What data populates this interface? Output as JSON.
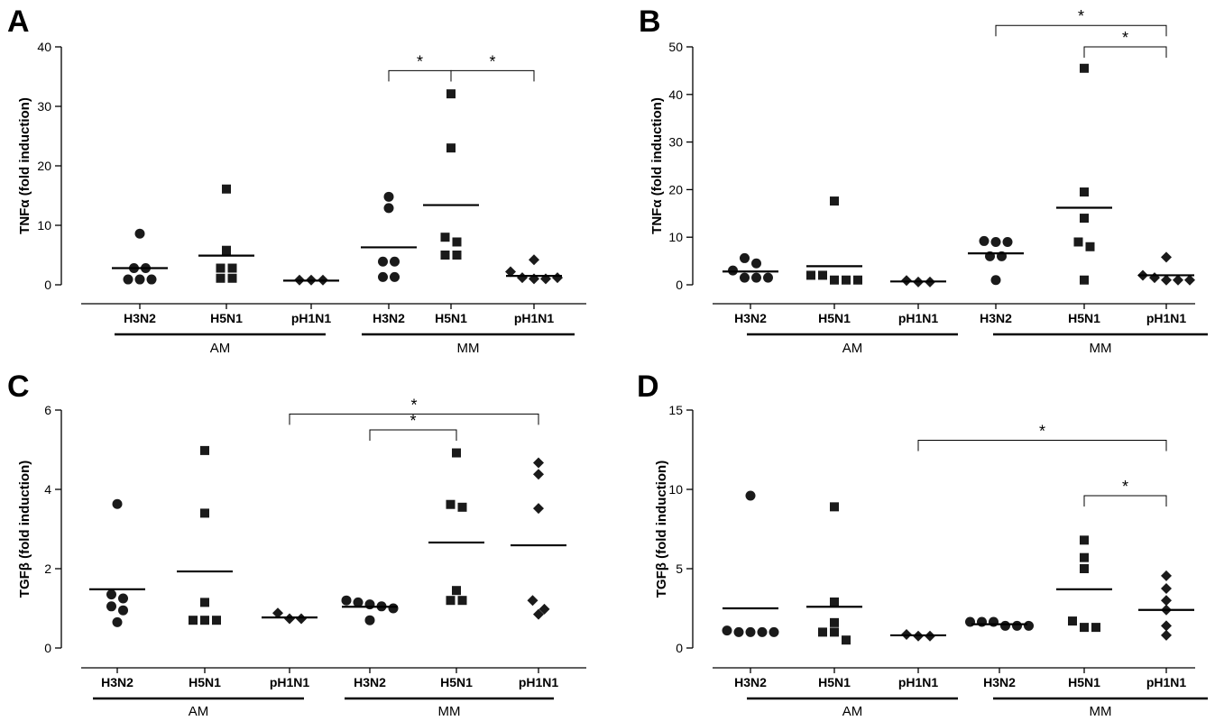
{
  "chart_data": [
    {
      "type": "scatter",
      "panel": "A",
      "ylabel": "TNFα (fold induction)",
      "ylim": [
        0,
        40
      ],
      "yticks": [
        0,
        10,
        20,
        30,
        40
      ],
      "categories": [
        "H3N2",
        "H5N1",
        "pH1N1",
        "H3N2",
        "H5N1",
        "pH1N1"
      ],
      "groups": [
        {
          "label": "AM",
          "categories": [
            0,
            1,
            2
          ]
        },
        {
          "label": "MM",
          "categories": [
            3,
            4,
            5
          ]
        }
      ],
      "markers": [
        "circle",
        "square",
        "diamond",
        "circle",
        "square",
        "diamond"
      ],
      "points": [
        [
          8.6,
          2.8,
          2.8,
          0.9,
          0.9,
          0.9
        ],
        [
          16.1,
          5.8,
          2.8,
          2.8,
          1.1,
          1.1
        ],
        [
          0.8,
          0.8,
          0.8
        ],
        [
          14.8,
          12.9,
          3.9,
          3.9,
          1.3,
          1.3
        ],
        [
          32.1,
          23.0,
          8.0,
          7.2,
          5.0,
          5.0
        ],
        [
          4.2,
          2.2,
          1.2,
          1.0,
          1.0,
          1.2
        ]
      ],
      "means": [
        2.8,
        4.9,
        0.7,
        6.3,
        13.4,
        1.5
      ],
      "significance": [
        {
          "from": 3,
          "to": 4,
          "label": "*",
          "y": 36
        },
        {
          "from": 4,
          "to": 5,
          "label": "*",
          "y": 36
        }
      ]
    },
    {
      "type": "scatter",
      "panel": "B",
      "ylabel": "TNFα (fold induction)",
      "ylim": [
        0,
        50
      ],
      "yticks": [
        0,
        10,
        20,
        30,
        40,
        50
      ],
      "categories": [
        "H3N2",
        "H5N1",
        "pH1N1",
        "H3N2",
        "H5N1",
        "pH1N1"
      ],
      "groups": [
        {
          "label": "AM",
          "categories": [
            0,
            1,
            2
          ]
        },
        {
          "label": "MM",
          "categories": [
            3,
            4,
            5
          ]
        }
      ],
      "markers": [
        "circle",
        "square",
        "diamond",
        "circle",
        "square",
        "diamond"
      ],
      "points": [
        [
          5.6,
          4.5,
          3.0,
          1.5,
          1.5,
          1.5
        ],
        [
          17.6,
          2.0,
          2.0,
          1.0,
          1.0,
          1.0
        ],
        [
          0.9,
          0.6,
          0.6
        ],
        [
          9.2,
          9.0,
          9.0,
          6.0,
          6.0,
          1.0
        ],
        [
          45.5,
          19.5,
          14.0,
          9.0,
          8.0,
          1.0
        ],
        [
          5.8,
          2.0,
          1.5,
          1.0,
          1.0,
          1.0
        ]
      ],
      "means": [
        2.8,
        3.9,
        0.7,
        6.6,
        16.2,
        2.0
      ],
      "significance": [
        {
          "from": 3,
          "to": 5,
          "label": "*",
          "y": 54.5
        },
        {
          "from": 4,
          "to": 5,
          "label": "*",
          "y": 50
        }
      ]
    },
    {
      "type": "scatter",
      "panel": "C",
      "ylabel": "TGFβ (fold induction)",
      "ylim": [
        0,
        6
      ],
      "yticks": [
        0,
        2,
        4,
        6
      ],
      "categories": [
        "H3N2",
        "H5N1",
        "pH1N1",
        "H3N2",
        "H5N1",
        "pH1N1"
      ],
      "groups": [
        {
          "label": "AM",
          "categories": [
            0,
            1,
            2
          ]
        },
        {
          "label": "MM",
          "categories": [
            3,
            4,
            5
          ]
        }
      ],
      "markers": [
        "circle",
        "square",
        "diamond",
        "circle",
        "square",
        "diamond"
      ],
      "points": [
        [
          3.63,
          1.35,
          1.25,
          1.05,
          0.95,
          0.65
        ],
        [
          4.98,
          3.4,
          1.15,
          0.7,
          0.7,
          0.7
        ],
        [
          0.88,
          0.74,
          0.74
        ],
        [
          1.2,
          1.15,
          1.1,
          1.05,
          1.0,
          0.7
        ],
        [
          4.92,
          3.62,
          3.55,
          1.45,
          1.2,
          1.2
        ],
        [
          4.67,
          4.38,
          3.52,
          1.2,
          0.98,
          0.85
        ]
      ],
      "means": [
        1.48,
        1.93,
        0.77,
        1.04,
        2.66,
        2.59
      ],
      "significance": [
        {
          "from": 2,
          "to": 5,
          "label": "*",
          "y": 5.9
        },
        {
          "from": 3,
          "to": 4,
          "label": "*",
          "y": 5.5
        }
      ]
    },
    {
      "type": "scatter",
      "panel": "D",
      "ylabel": "TGFβ (fold induction)",
      "ylim": [
        0,
        15
      ],
      "yticks": [
        0,
        5,
        10,
        15
      ],
      "categories": [
        "H3N2",
        "H5N1",
        "pH1N1",
        "H3N2",
        "H5N1",
        "pH1N1"
      ],
      "groups": [
        {
          "label": "AM",
          "categories": [
            0,
            1,
            2
          ]
        },
        {
          "label": "MM",
          "categories": [
            3,
            4,
            5
          ]
        }
      ],
      "markers": [
        "circle",
        "square",
        "diamond",
        "circle",
        "square",
        "diamond"
      ],
      "points": [
        [
          9.6,
          1.1,
          1.0,
          1.0,
          1.0,
          1.0
        ],
        [
          8.9,
          2.9,
          1.6,
          1.0,
          1.0,
          0.5
        ],
        [
          0.85,
          0.75,
          0.75
        ],
        [
          1.65,
          1.65,
          1.65,
          1.4,
          1.4,
          1.4
        ],
        [
          6.8,
          5.7,
          5.0,
          1.7,
          1.3,
          1.3
        ],
        [
          4.55,
          3.75,
          3.0,
          2.4,
          1.4,
          0.8
        ]
      ],
      "means": [
        2.5,
        2.6,
        0.8,
        1.5,
        3.7,
        2.4
      ],
      "significance": [
        {
          "from": 2,
          "to": 5,
          "label": "*",
          "y": 13.1
        },
        {
          "from": 4,
          "to": 5,
          "label": "*",
          "y": 9.6
        }
      ]
    }
  ]
}
